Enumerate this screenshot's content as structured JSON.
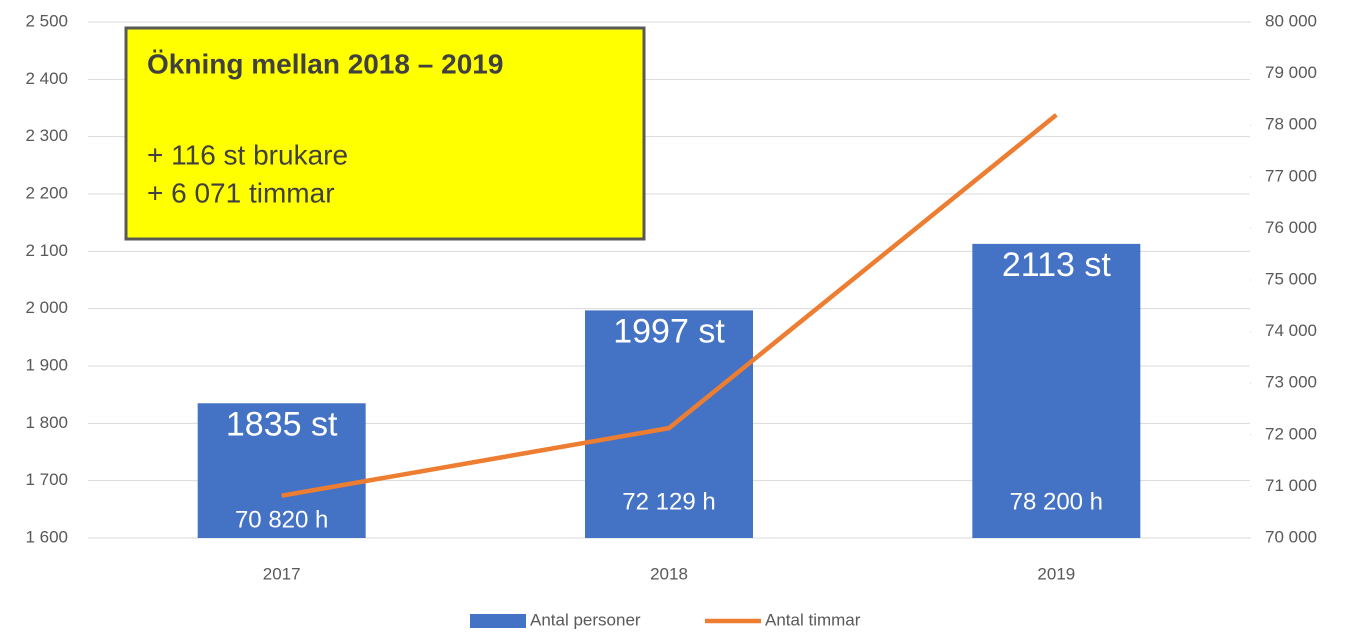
{
  "chart_data": {
    "type": "bar",
    "categories": [
      "2017",
      "2018",
      "2019"
    ],
    "series": [
      {
        "name": "Antal personer",
        "type": "bar",
        "color": "#4472c4",
        "values": [
          1835,
          1997,
          2113
        ],
        "value_labels": [
          "1835 st",
          "1997 st",
          "2113 st"
        ]
      },
      {
        "name": "Antal timmar",
        "type": "line",
        "axis": "y2",
        "color": "#ed7d31",
        "values": [
          70820,
          72129,
          78200
        ],
        "value_labels": [
          "70 820 h",
          "72 129 h",
          "78 200 h"
        ]
      }
    ],
    "ylim": [
      1600,
      2500
    ],
    "yticks": [
      {
        "value": 1600,
        "label": "1 600"
      },
      {
        "value": 1700,
        "label": "1 700"
      },
      {
        "value": 1800,
        "label": "1 800"
      },
      {
        "value": 1900,
        "label": "1 900"
      },
      {
        "value": 2000,
        "label": "2 000"
      },
      {
        "value": 2100,
        "label": "2 100"
      },
      {
        "value": 2200,
        "label": "2 200"
      },
      {
        "value": 2300,
        "label": "2 300"
      },
      {
        "value": 2400,
        "label": "2 400"
      },
      {
        "value": 2500,
        "label": "2 500"
      }
    ],
    "y2lim": [
      70000,
      80000
    ],
    "y2ticks": [
      {
        "value": 70000,
        "label": "70 000"
      },
      {
        "value": 71000,
        "label": "71 000"
      },
      {
        "value": 72000,
        "label": "72 000"
      },
      {
        "value": 73000,
        "label": "73 000"
      },
      {
        "value": 74000,
        "label": "74 000"
      },
      {
        "value": 75000,
        "label": "75 000"
      },
      {
        "value": 76000,
        "label": "76 000"
      },
      {
        "value": 77000,
        "label": "77 000"
      },
      {
        "value": 78000,
        "label": "78 000"
      },
      {
        "value": 79000,
        "label": "79 000"
      },
      {
        "value": 80000,
        "label": "80 000"
      }
    ],
    "grid": true,
    "legend": "bottom",
    "annotation": {
      "title": "Ökning mellan 2018 – 2019",
      "lines": [
        "+ 116 st brukare",
        "+ 6 071 timmar"
      ],
      "color": "#ffff00"
    }
  }
}
